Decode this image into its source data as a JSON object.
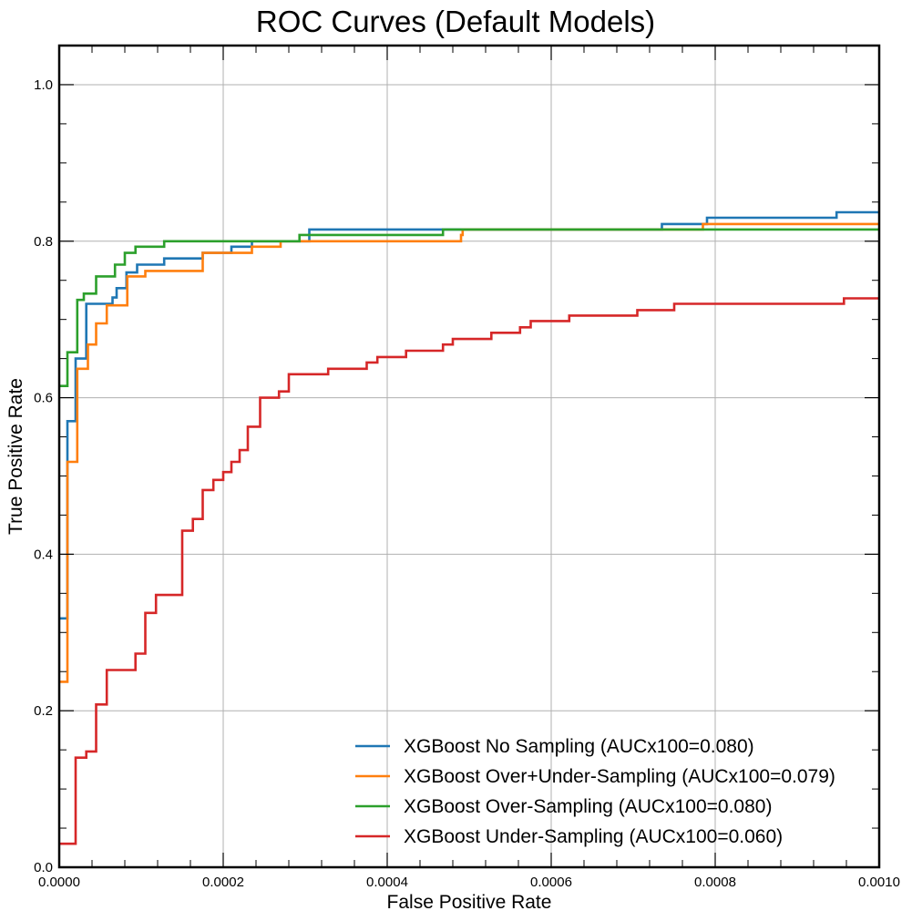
{
  "chart_data": {
    "type": "line",
    "title": "ROC Curves (Default Models)",
    "xlabel": "False Positive Rate",
    "ylabel": "True Positive Rate",
    "xlim": [
      0,
      0.001
    ],
    "ylim": [
      0,
      1.05
    ],
    "xticks": [
      0,
      0.0002,
      0.0004,
      0.0006,
      0.0008,
      0.001
    ],
    "xtick_labels": [
      "0.0000",
      "0.0002",
      "0.0004",
      "0.0006",
      "0.0008",
      "0.0010"
    ],
    "yticks": [
      0,
      0.2,
      0.4,
      0.6,
      0.8,
      1.0
    ],
    "ytick_labels": [
      "0.0",
      "0.2",
      "0.4",
      "0.6",
      "0.8",
      "1.0"
    ],
    "grid": true,
    "legend_position": "lower-right",
    "series": [
      {
        "name": "XGBoost No Sampling (AUCx100=0.080)",
        "color": "#1f77b4",
        "points": [
          [
            0,
            0.318
          ],
          [
            1e-05,
            0.318
          ],
          [
            1e-05,
            0.57
          ],
          [
            2e-05,
            0.57
          ],
          [
            2e-05,
            0.65
          ],
          [
            3.3e-05,
            0.65
          ],
          [
            3.3e-05,
            0.72
          ],
          [
            6.5e-05,
            0.72
          ],
          [
            6.5e-05,
            0.728
          ],
          [
            7e-05,
            0.728
          ],
          [
            7e-05,
            0.74
          ],
          [
            8.2e-05,
            0.74
          ],
          [
            8.2e-05,
            0.76
          ],
          [
            9.5e-05,
            0.76
          ],
          [
            9.5e-05,
            0.77
          ],
          [
            0.000128,
            0.77
          ],
          [
            0.000128,
            0.778
          ],
          [
            0.000175,
            0.778
          ],
          [
            0.000175,
            0.785
          ],
          [
            0.00021,
            0.785
          ],
          [
            0.00021,
            0.793
          ],
          [
            0.000235,
            0.793
          ],
          [
            0.000235,
            0.8
          ],
          [
            0.000305,
            0.8
          ],
          [
            0.000305,
            0.815
          ],
          [
            0.000735,
            0.815
          ],
          [
            0.000735,
            0.822
          ],
          [
            0.00079,
            0.822
          ],
          [
            0.00079,
            0.83
          ],
          [
            0.000948,
            0.83
          ],
          [
            0.000948,
            0.837
          ],
          [
            0.001,
            0.837
          ]
        ]
      },
      {
        "name": "XGBoost Over+Under-Sampling (AUCx100=0.079)",
        "color": "#ff7f0e",
        "points": [
          [
            0,
            0.237
          ],
          [
            1e-05,
            0.237
          ],
          [
            1e-05,
            0.518
          ],
          [
            2.2e-05,
            0.518
          ],
          [
            2.2e-05,
            0.637
          ],
          [
            3.5e-05,
            0.637
          ],
          [
            3.5e-05,
            0.668
          ],
          [
            4.5e-05,
            0.668
          ],
          [
            4.5e-05,
            0.695
          ],
          [
            5.8e-05,
            0.695
          ],
          [
            5.8e-05,
            0.718
          ],
          [
            8.3e-05,
            0.718
          ],
          [
            8.3e-05,
            0.755
          ],
          [
            0.000105,
            0.755
          ],
          [
            0.000105,
            0.762
          ],
          [
            0.000175,
            0.762
          ],
          [
            0.000175,
            0.785
          ],
          [
            0.000235,
            0.785
          ],
          [
            0.000235,
            0.793
          ],
          [
            0.00027,
            0.793
          ],
          [
            0.00027,
            0.8
          ],
          [
            0.000445,
            0.8
          ],
          [
            0.000445,
            0.8
          ],
          [
            0.00049,
            0.8
          ],
          [
            0.00049,
            0.808
          ],
          [
            0.000492,
            0.808
          ],
          [
            0.000492,
            0.815
          ],
          [
            0.000785,
            0.815
          ],
          [
            0.000785,
            0.822
          ],
          [
            0.001,
            0.822
          ]
        ]
      },
      {
        "name": "XGBoost Over-Sampling (AUCx100=0.080)",
        "color": "#2ca02c",
        "points": [
          [
            0,
            0.615
          ],
          [
            1e-05,
            0.615
          ],
          [
            1e-05,
            0.658
          ],
          [
            2.2e-05,
            0.658
          ],
          [
            2.2e-05,
            0.725
          ],
          [
            3e-05,
            0.725
          ],
          [
            3e-05,
            0.733
          ],
          [
            4.5e-05,
            0.733
          ],
          [
            4.5e-05,
            0.755
          ],
          [
            6.8e-05,
            0.755
          ],
          [
            6.8e-05,
            0.77
          ],
          [
            8e-05,
            0.77
          ],
          [
            8e-05,
            0.785
          ],
          [
            9.3e-05,
            0.785
          ],
          [
            9.3e-05,
            0.793
          ],
          [
            0.000128,
            0.793
          ],
          [
            0.000128,
            0.8
          ],
          [
            0.000293,
            0.8
          ],
          [
            0.000293,
            0.808
          ],
          [
            0.000468,
            0.808
          ],
          [
            0.000468,
            0.815
          ],
          [
            0.001,
            0.815
          ]
        ]
      },
      {
        "name": "XGBoost Under-Sampling (AUCx100=0.060)",
        "color": "#d62728",
        "points": [
          [
            0,
            0.03
          ],
          [
            2e-05,
            0.03
          ],
          [
            2e-05,
            0.14
          ],
          [
            3.3e-05,
            0.14
          ],
          [
            3.3e-05,
            0.148
          ],
          [
            4.5e-05,
            0.148
          ],
          [
            4.5e-05,
            0.208
          ],
          [
            5.8e-05,
            0.208
          ],
          [
            5.8e-05,
            0.252
          ],
          [
            9.3e-05,
            0.252
          ],
          [
            9.3e-05,
            0.273
          ],
          [
            0.000105,
            0.273
          ],
          [
            0.000105,
            0.325
          ],
          [
            0.000118,
            0.325
          ],
          [
            0.000118,
            0.348
          ],
          [
            0.00015,
            0.348
          ],
          [
            0.00015,
            0.43
          ],
          [
            0.000163,
            0.43
          ],
          [
            0.000163,
            0.445
          ],
          [
            0.000175,
            0.445
          ],
          [
            0.000175,
            0.482
          ],
          [
            0.000188,
            0.482
          ],
          [
            0.000188,
            0.495
          ],
          [
            0.0002,
            0.495
          ],
          [
            0.0002,
            0.505
          ],
          [
            0.00021,
            0.505
          ],
          [
            0.00021,
            0.518
          ],
          [
            0.00022,
            0.518
          ],
          [
            0.00022,
            0.533
          ],
          [
            0.00023,
            0.533
          ],
          [
            0.00023,
            0.563
          ],
          [
            0.000245,
            0.563
          ],
          [
            0.000245,
            0.6
          ],
          [
            0.000268,
            0.6
          ],
          [
            0.000268,
            0.608
          ],
          [
            0.00028,
            0.608
          ],
          [
            0.00028,
            0.63
          ],
          [
            0.000328,
            0.63
          ],
          [
            0.000328,
            0.637
          ],
          [
            0.000375,
            0.637
          ],
          [
            0.000375,
            0.645
          ],
          [
            0.000388,
            0.645
          ],
          [
            0.000388,
            0.652
          ],
          [
            0.000423,
            0.652
          ],
          [
            0.000423,
            0.66
          ],
          [
            0.000468,
            0.66
          ],
          [
            0.000468,
            0.668
          ],
          [
            0.00048,
            0.668
          ],
          [
            0.00048,
            0.675
          ],
          [
            0.000527,
            0.675
          ],
          [
            0.000527,
            0.683
          ],
          [
            0.000562,
            0.683
          ],
          [
            0.000562,
            0.69
          ],
          [
            0.000575,
            0.69
          ],
          [
            0.000575,
            0.698
          ],
          [
            0.000622,
            0.698
          ],
          [
            0.000622,
            0.705
          ],
          [
            0.000705,
            0.705
          ],
          [
            0.000705,
            0.712
          ],
          [
            0.00075,
            0.712
          ],
          [
            0.00075,
            0.72
          ],
          [
            0.000957,
            0.72
          ],
          [
            0.000957,
            0.727
          ],
          [
            0.001,
            0.727
          ]
        ]
      }
    ]
  }
}
